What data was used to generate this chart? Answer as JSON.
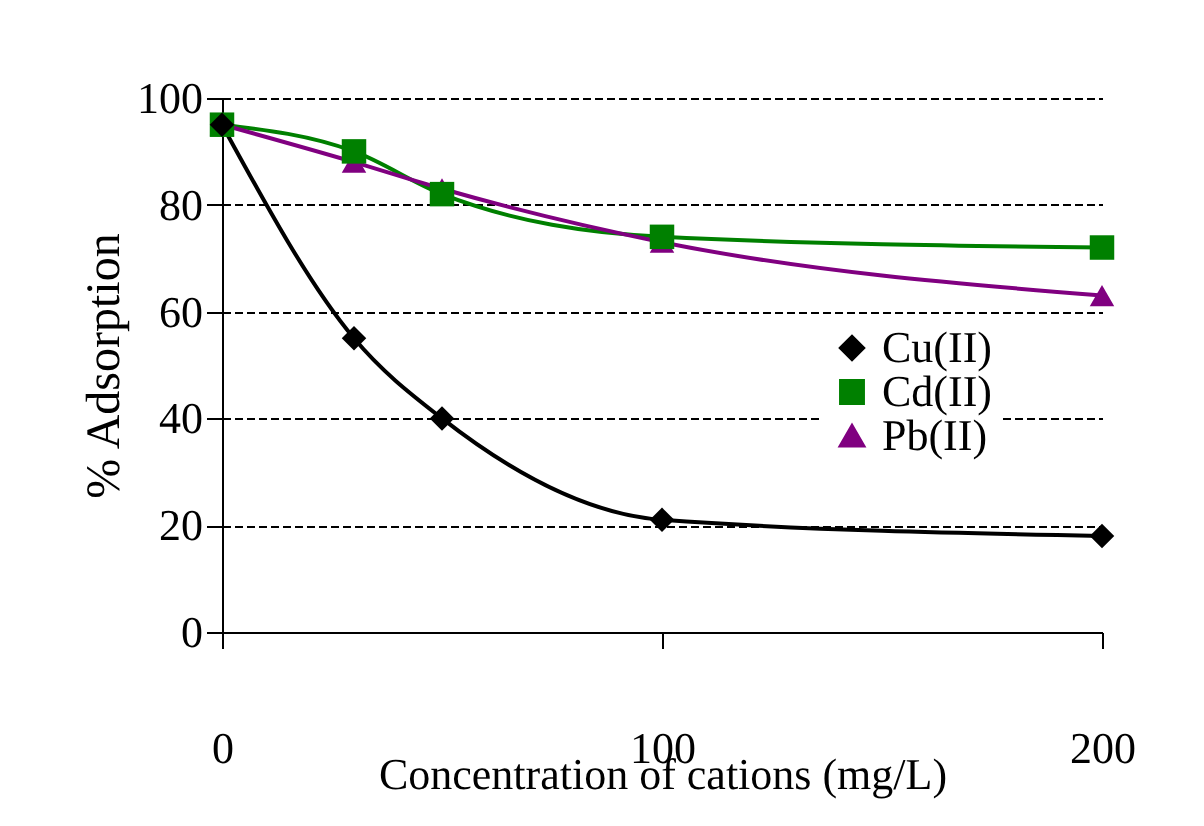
{
  "chart_data": {
    "type": "line",
    "xlabel": "Concentration of cations (mg/L)",
    "ylabel": "% Adsorption",
    "x": [
      0,
      30,
      50,
      100,
      200
    ],
    "series": [
      {
        "name": "Cu(II)",
        "color": "#000000",
        "marker": "diamond",
        "values": [
          95,
          55,
          40,
          21,
          18
        ]
      },
      {
        "name": "Cd(II)",
        "color": "#008000",
        "marker": "square",
        "values": [
          95,
          90,
          82,
          74,
          72
        ]
      },
      {
        "name": "Pb(II)",
        "color": "#800080",
        "marker": "triangle",
        "values": [
          95,
          88,
          83,
          73,
          63
        ]
      }
    ],
    "xlim": [
      0,
      200
    ],
    "xticks": [
      0,
      100,
      200
    ],
    "ylim": [
      0,
      100
    ],
    "yticks": [
      0,
      20,
      40,
      60,
      80,
      100
    ],
    "grid": "y",
    "legend": "right"
  }
}
